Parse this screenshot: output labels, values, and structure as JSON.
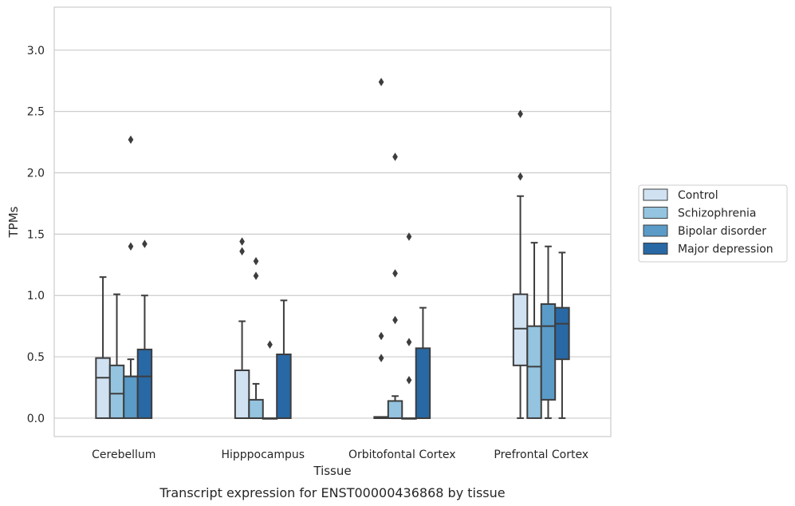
{
  "caption": "Transcript expression for ENST00000436868 by tissue",
  "chart_data": {
    "type": "box",
    "xlabel": "Tissue",
    "ylabel": "TPMs",
    "ylim": [
      -0.15,
      3.35
    ],
    "yticks": [
      0.0,
      0.5,
      1.0,
      1.5,
      2.0,
      2.5,
      3.0
    ],
    "ytick_labels": [
      "0.0",
      "0.5",
      "1.0",
      "1.5",
      "2.0",
      "2.5",
      "3.0"
    ],
    "grid": "horizontal",
    "legend_placement": "right",
    "categories": [
      "Cerebellum",
      "Hipppocampus",
      "Orbitofontal Cortex",
      "Prefrontal Cortex"
    ],
    "series": [
      {
        "name": "Control",
        "color": "#d0e1f2",
        "boxes": [
          {
            "whislo": 0.0,
            "q1": 0.0,
            "med": 0.33,
            "q3": 0.49,
            "whishi": 1.15,
            "fliers": []
          },
          {
            "whislo": 0.0,
            "q1": 0.0,
            "med": 0.0,
            "q3": 0.39,
            "whishi": 0.79,
            "fliers": [
              1.36,
              1.44
            ]
          },
          {
            "whislo": 0.0,
            "q1": 0.0,
            "med": 0.0,
            "q3": 0.01,
            "whishi": 0.01,
            "fliers": [
              0.49,
              0.67,
              2.74
            ]
          },
          {
            "whislo": 0.0,
            "q1": 0.43,
            "med": 0.73,
            "q3": 1.01,
            "whishi": 1.81,
            "fliers": [
              1.97,
              2.48
            ]
          }
        ]
      },
      {
        "name": "Schizophrenia",
        "color": "#94c4df",
        "boxes": [
          {
            "whislo": 0.0,
            "q1": 0.0,
            "med": 0.2,
            "q3": 0.43,
            "whishi": 1.01,
            "fliers": []
          },
          {
            "whislo": 0.0,
            "q1": 0.0,
            "med": 0.0,
            "q3": 0.15,
            "whishi": 0.28,
            "fliers": [
              1.16,
              1.28
            ]
          },
          {
            "whislo": 0.0,
            "q1": 0.0,
            "med": 0.0,
            "q3": 0.14,
            "whishi": 0.18,
            "fliers": [
              0.8,
              1.18,
              2.13
            ]
          },
          {
            "whislo": 0.0,
            "q1": 0.0,
            "med": 0.42,
            "q3": 0.75,
            "whishi": 1.43,
            "fliers": []
          }
        ]
      },
      {
        "name": "Bipolar disorder",
        "color": "#5a9bc8",
        "boxes": [
          {
            "whislo": 0.0,
            "q1": 0.0,
            "med": 0.34,
            "q3": 0.34,
            "whishi": 0.48,
            "fliers": [
              1.4,
              2.27
            ]
          },
          {
            "whislo": 0.0,
            "q1": 0.0,
            "med": 0.0,
            "q3": 0.0,
            "whishi": 0.0,
            "fliers": [
              0.6
            ]
          },
          {
            "whislo": 0.0,
            "q1": 0.0,
            "med": 0.0,
            "q3": 0.0,
            "whishi": 0.0,
            "fliers": [
              0.31,
              0.62,
              1.48
            ]
          },
          {
            "whislo": 0.0,
            "q1": 0.15,
            "med": 0.75,
            "q3": 0.93,
            "whishi": 1.4,
            "fliers": []
          }
        ]
      },
      {
        "name": "Major depression",
        "color": "#2868a5",
        "boxes": [
          {
            "whislo": 0.0,
            "q1": 0.0,
            "med": 0.34,
            "q3": 0.56,
            "whishi": 1.0,
            "fliers": [
              1.42
            ]
          },
          {
            "whislo": 0.0,
            "q1": 0.0,
            "med": 0.0,
            "q3": 0.52,
            "whishi": 0.96,
            "fliers": []
          },
          {
            "whislo": 0.0,
            "q1": 0.0,
            "med": 0.0,
            "q3": 0.57,
            "whishi": 0.9,
            "fliers": []
          },
          {
            "whislo": 0.0,
            "q1": 0.48,
            "med": 0.77,
            "q3": 0.9,
            "whishi": 1.35,
            "fliers": []
          }
        ]
      }
    ]
  }
}
